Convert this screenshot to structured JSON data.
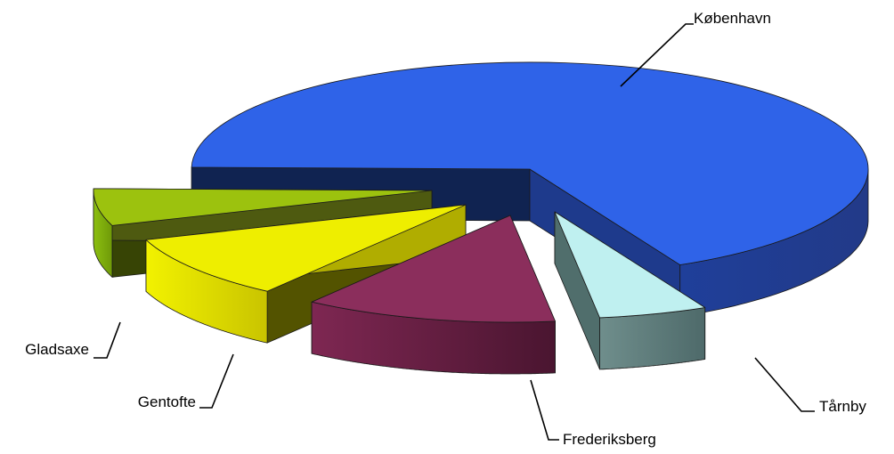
{
  "chart_data": {
    "type": "pie",
    "title": "",
    "slices": [
      {
        "label": "København",
        "value": 67.4,
        "color": "#2f63e8"
      },
      {
        "label": "Tårnby",
        "value": 5.2,
        "color": "#bff0f0"
      },
      {
        "label": "Frederiksberg",
        "value": 12.1,
        "color": "#8b2e5c"
      },
      {
        "label": "Gentofte",
        "value": 9.7,
        "color": "#eeee00"
      },
      {
        "label": "Gladsaxe",
        "value": 5.6,
        "color": "#9cc20e"
      }
    ],
    "style": "3d-exploded",
    "legend": "none"
  }
}
